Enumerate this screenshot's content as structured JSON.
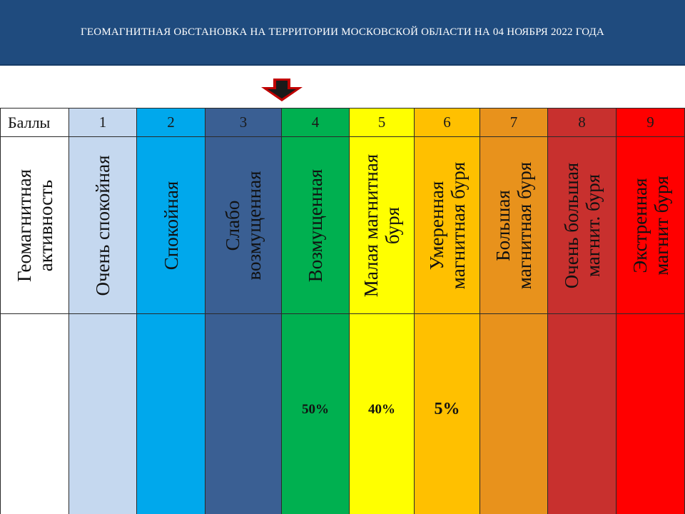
{
  "header": {
    "title": "ГЕОМАГНИТНАЯ  ОБСТАНОВКА  НА  ТЕРРИТОРИИ МОСКОВСКОЙ ОБЛАСТИ НА 04 НОЯБРЯ 2022 ГОДА",
    "background": "#1f4b7e"
  },
  "indicator": {
    "icon": "arrow-down-icon",
    "color": "#c00000",
    "points_to_scale_value": 4
  },
  "table": {
    "score_label": "Баллы",
    "activity_label": "Геомагнитная\nактивность",
    "levels": [
      {
        "score": "1",
        "activity": "Очень спокойная",
        "color": "#c5d8ef",
        "percent": ""
      },
      {
        "score": "2",
        "activity": "Спокойная",
        "color": "#00a8ec",
        "percent": ""
      },
      {
        "score": "3",
        "activity": "Слабо\nвозмущенная",
        "color": "#3a5f93",
        "percent": ""
      },
      {
        "score": "4",
        "activity": "Возмущенная",
        "color": "#00b050",
        "percent": "50%"
      },
      {
        "score": "5",
        "activity": "Малая магнитная\nбуря",
        "color": "#ffff00",
        "percent": "40%"
      },
      {
        "score": "6",
        "activity": "Умеренная\nмагнитная буря",
        "color": "#ffc000",
        "percent": "5%"
      },
      {
        "score": "7",
        "activity": "Большая\nмагнитная буря",
        "color": "#e8921c",
        "percent": ""
      },
      {
        "score": "8",
        "activity": "Очень большая\nмагнит. буря",
        "color": "#c8302e",
        "percent": ""
      },
      {
        "score": "9",
        "activity": "Экстренная\nмагнит буря",
        "color": "#ff0000",
        "percent": ""
      }
    ]
  }
}
